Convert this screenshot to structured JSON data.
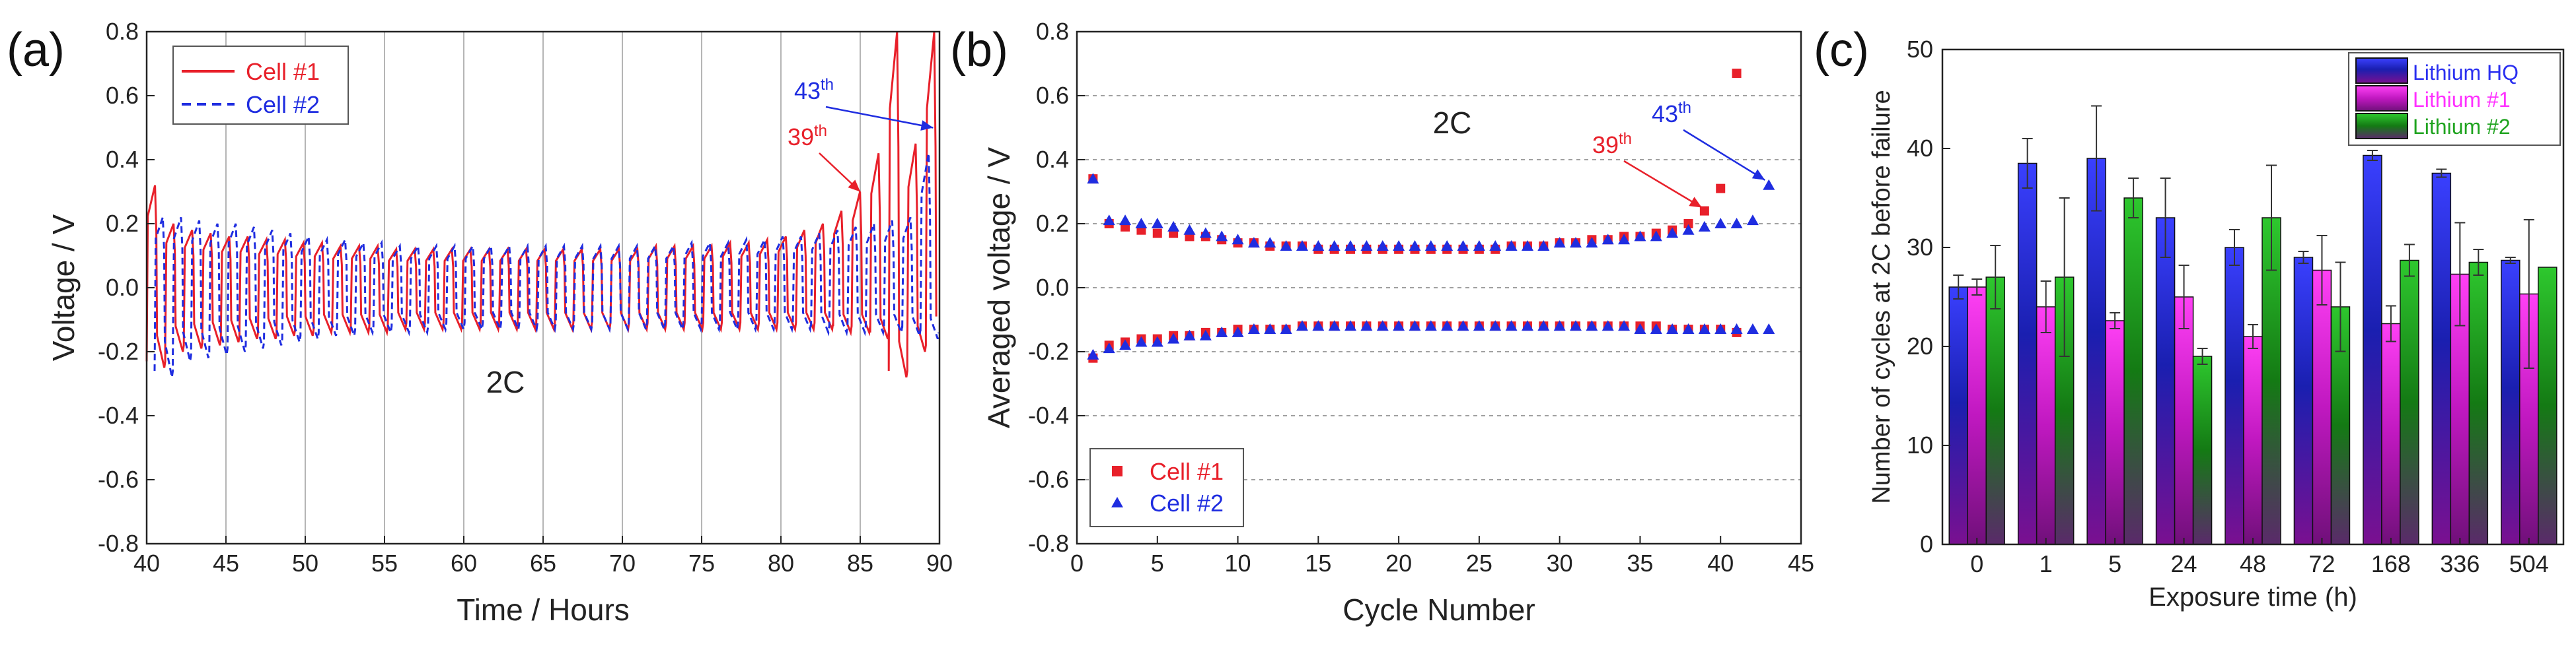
{
  "chart_data": [
    {
      "panel": "(a)",
      "type": "line",
      "title": "",
      "xlabel": "Time / Hours",
      "ylabel": "Voltage / V",
      "xlim": [
        40,
        90
      ],
      "ylim": [
        -0.8,
        0.8
      ],
      "xticks": [
        "40",
        "45",
        "50",
        "55",
        "60",
        "65",
        "70",
        "75",
        "80",
        "85",
        "90"
      ],
      "yticks": [
        "-0.8",
        "-0.6",
        "-0.4",
        "-0.2",
        "0.0",
        "0.2",
        "0.4",
        "0.6",
        "0.8"
      ],
      "grid": "vertical",
      "legend_position": "top-left",
      "annotation_center": "2C",
      "annotations": [
        {
          "text": "39",
          "sup": "th",
          "color": "#e8202a",
          "target_x": 85,
          "target_y": 0.3
        },
        {
          "text": "43",
          "sup": "th",
          "color": "#1f2de0",
          "target_x": 89.6,
          "target_y": 0.5
        }
      ],
      "series": [
        {
          "name": "Cell #1",
          "color": "#e8202a",
          "style": "solid",
          "start": 40.0,
          "period": 1.17,
          "cycles": [
            [
              0.32,
              -0.25
            ],
            [
              0.2,
              -0.2
            ],
            [
              0.18,
              -0.19
            ],
            [
              0.17,
              -0.18
            ],
            [
              0.16,
              -0.17
            ],
            [
              0.16,
              -0.16
            ],
            [
              0.15,
              -0.16
            ],
            [
              0.15,
              -0.15
            ],
            [
              0.14,
              -0.15
            ],
            [
              0.14,
              -0.14
            ],
            [
              0.13,
              -0.14
            ],
            [
              0.13,
              -0.14
            ],
            [
              0.13,
              -0.14
            ],
            [
              0.12,
              -0.13
            ],
            [
              0.12,
              -0.13
            ],
            [
              0.12,
              -0.13
            ],
            [
              0.12,
              -0.13
            ],
            [
              0.12,
              -0.13
            ],
            [
              0.12,
              -0.13
            ],
            [
              0.12,
              -0.13
            ],
            [
              0.12,
              -0.13
            ],
            [
              0.12,
              -0.13
            ],
            [
              0.12,
              -0.13
            ],
            [
              0.12,
              -0.13
            ],
            [
              0.12,
              -0.13
            ],
            [
              0.12,
              -0.13
            ],
            [
              0.12,
              -0.13
            ],
            [
              0.13,
              -0.13
            ],
            [
              0.13,
              -0.13
            ],
            [
              0.13,
              -0.13
            ],
            [
              0.13,
              -0.13
            ],
            [
              0.14,
              -0.13
            ],
            [
              0.14,
              -0.13
            ],
            [
              0.15,
              -0.13
            ],
            [
              0.16,
              -0.13
            ],
            [
              0.18,
              -0.13
            ],
            [
              0.2,
              -0.13
            ],
            [
              0.24,
              -0.14
            ],
            [
              0.3,
              -0.14
            ],
            [
              0.42,
              -0.16
            ],
            [
              0.8,
              -0.28
            ],
            [
              0.45,
              -0.2
            ],
            [
              0.8,
              -0.15
            ]
          ]
        },
        {
          "name": "Cell #2",
          "color": "#1f2de0",
          "style": "dashed",
          "start": 40.5,
          "period": 1.15,
          "cycles": [
            [
              0.22,
              -0.28
            ],
            [
              0.22,
              -0.23
            ],
            [
              0.21,
              -0.22
            ],
            [
              0.2,
              -0.21
            ],
            [
              0.2,
              -0.2
            ],
            [
              0.19,
              -0.19
            ],
            [
              0.18,
              -0.18
            ],
            [
              0.17,
              -0.17
            ],
            [
              0.16,
              -0.16
            ],
            [
              0.15,
              -0.15
            ],
            [
              0.15,
              -0.15
            ],
            [
              0.14,
              -0.14
            ],
            [
              0.14,
              -0.14
            ],
            [
              0.13,
              -0.14
            ],
            [
              0.13,
              -0.14
            ],
            [
              0.13,
              -0.13
            ],
            [
              0.13,
              -0.13
            ],
            [
              0.13,
              -0.13
            ],
            [
              0.13,
              -0.13
            ],
            [
              0.13,
              -0.13
            ],
            [
              0.13,
              -0.13
            ],
            [
              0.13,
              -0.13
            ],
            [
              0.13,
              -0.13
            ],
            [
              0.13,
              -0.13
            ],
            [
              0.13,
              -0.13
            ],
            [
              0.13,
              -0.13
            ],
            [
              0.13,
              -0.13
            ],
            [
              0.13,
              -0.13
            ],
            [
              0.13,
              -0.13
            ],
            [
              0.14,
              -0.13
            ],
            [
              0.14,
              -0.13
            ],
            [
              0.14,
              -0.13
            ],
            [
              0.15,
              -0.13
            ],
            [
              0.15,
              -0.13
            ],
            [
              0.16,
              -0.13
            ],
            [
              0.16,
              -0.13
            ],
            [
              0.17,
              -0.14
            ],
            [
              0.18,
              -0.14
            ],
            [
              0.19,
              -0.14
            ],
            [
              0.2,
              -0.14
            ],
            [
              0.21,
              -0.14
            ],
            [
              0.22,
              -0.15
            ],
            [
              0.42,
              -0.16
            ],
            [
              0.8,
              -0.16
            ]
          ]
        }
      ]
    },
    {
      "panel": "(b)",
      "type": "scatter",
      "title": "",
      "xlabel": "Cycle Number",
      "ylabel": "Averaged voltage / V",
      "xlim": [
        0,
        45
      ],
      "ylim": [
        -0.8,
        0.8
      ],
      "xticks": [
        "0",
        "5",
        "10",
        "15",
        "20",
        "25",
        "30",
        "35",
        "40",
        "45"
      ],
      "yticks": [
        "-0.8",
        "-0.6",
        "-0.4",
        "-0.2",
        "0.0",
        "0.2",
        "0.4",
        "0.6",
        "0.8"
      ],
      "grid": "horizontal",
      "legend_position": "bottom-left",
      "annotation_center": "2C",
      "annotations": [
        {
          "text": "39",
          "sup": "th",
          "color": "#e8202a",
          "target_x": 39,
          "target_y": 0.23
        },
        {
          "text": "43",
          "sup": "th",
          "color": "#1f2de0",
          "target_x": 43,
          "target_y": 0.32
        }
      ],
      "series": [
        {
          "name": "Cell #1",
          "color": "#e8202a",
          "marker": "square",
          "x": [
            1,
            2,
            3,
            4,
            5,
            6,
            7,
            8,
            9,
            10,
            11,
            12,
            13,
            14,
            15,
            16,
            17,
            18,
            19,
            20,
            21,
            22,
            23,
            24,
            25,
            26,
            27,
            28,
            29,
            30,
            31,
            32,
            33,
            34,
            35,
            36,
            37,
            38,
            39,
            40,
            41
          ],
          "charge": [
            0.34,
            0.2,
            0.19,
            0.18,
            0.17,
            0.17,
            0.16,
            0.16,
            0.15,
            0.14,
            0.14,
            0.13,
            0.13,
            0.13,
            0.12,
            0.12,
            0.12,
            0.12,
            0.12,
            0.12,
            0.12,
            0.12,
            0.12,
            0.12,
            0.12,
            0.12,
            0.13,
            0.13,
            0.13,
            0.14,
            0.14,
            0.15,
            0.15,
            0.16,
            0.16,
            0.17,
            0.18,
            0.2,
            0.24,
            0.31,
            0.67
          ],
          "discharge": [
            -0.22,
            -0.18,
            -0.17,
            -0.16,
            -0.16,
            -0.15,
            -0.15,
            -0.14,
            -0.14,
            -0.13,
            -0.13,
            -0.13,
            -0.13,
            -0.12,
            -0.12,
            -0.12,
            -0.12,
            -0.12,
            -0.12,
            -0.12,
            -0.12,
            -0.12,
            -0.12,
            -0.12,
            -0.12,
            -0.12,
            -0.12,
            -0.12,
            -0.12,
            -0.12,
            -0.12,
            -0.12,
            -0.12,
            -0.12,
            -0.12,
            -0.12,
            -0.13,
            -0.13,
            -0.13,
            -0.13,
            -0.14
          ]
        },
        {
          "name": "Cell #2",
          "color": "#1f2de0",
          "marker": "triangle",
          "x": [
            1,
            2,
            3,
            4,
            5,
            6,
            7,
            8,
            9,
            10,
            11,
            12,
            13,
            14,
            15,
            16,
            17,
            18,
            19,
            20,
            21,
            22,
            23,
            24,
            25,
            26,
            27,
            28,
            29,
            30,
            31,
            32,
            33,
            34,
            35,
            36,
            37,
            38,
            39,
            40,
            41,
            42,
            43
          ],
          "charge": [
            0.34,
            0.21,
            0.21,
            0.2,
            0.2,
            0.19,
            0.18,
            0.17,
            0.16,
            0.15,
            0.14,
            0.14,
            0.13,
            0.13,
            0.13,
            0.13,
            0.13,
            0.13,
            0.13,
            0.13,
            0.13,
            0.13,
            0.13,
            0.13,
            0.13,
            0.13,
            0.13,
            0.13,
            0.13,
            0.14,
            0.14,
            0.14,
            0.15,
            0.15,
            0.16,
            0.16,
            0.17,
            0.18,
            0.19,
            0.2,
            0.2,
            0.21,
            0.32
          ],
          "discharge": [
            -0.21,
            -0.19,
            -0.18,
            -0.17,
            -0.17,
            -0.16,
            -0.15,
            -0.15,
            -0.14,
            -0.14,
            -0.13,
            -0.13,
            -0.13,
            -0.12,
            -0.12,
            -0.12,
            -0.12,
            -0.12,
            -0.12,
            -0.12,
            -0.12,
            -0.12,
            -0.12,
            -0.12,
            -0.12,
            -0.12,
            -0.12,
            -0.12,
            -0.12,
            -0.12,
            -0.12,
            -0.12,
            -0.12,
            -0.12,
            -0.13,
            -0.13,
            -0.13,
            -0.13,
            -0.13,
            -0.13,
            -0.13,
            -0.13,
            -0.13
          ]
        }
      ]
    },
    {
      "panel": "(c)",
      "type": "bar",
      "title": "",
      "xlabel": "Exposure time (h)",
      "ylabel": "Number of cycles at 2C before failure",
      "ylim": [
        0,
        50
      ],
      "yticks": [
        "0",
        "10",
        "20",
        "30",
        "40",
        "50"
      ],
      "categories": [
        "0",
        "1",
        "5",
        "24",
        "48",
        "72",
        "168",
        "336",
        "504"
      ],
      "legend_position": "top-right",
      "series": [
        {
          "name": "Lithium HQ",
          "color": "#2a2ff0",
          "text_color": "#ffffff",
          "values": [
            26,
            38.5,
            39,
            33,
            30,
            29,
            39.3,
            37.5,
            28.7
          ],
          "errors": [
            1.2,
            2.5,
            5.3,
            4,
            1.8,
            0.6,
            0.5,
            0.4,
            0.3
          ]
        },
        {
          "name": "Lithium #1",
          "color": "#ee2ee8",
          "text_color": "#ff30ff",
          "values": [
            26,
            24,
            22.6,
            25,
            21,
            27.7,
            22.3,
            27.3,
            25.3
          ],
          "errors": [
            0.8,
            2.6,
            0.8,
            3.2,
            1.2,
            3.5,
            1.8,
            5.2,
            7.5
          ]
        },
        {
          "name": "Lithium #2",
          "color": "#17a317",
          "text_color": "#7dff7d",
          "values": [
            27,
            27,
            35,
            19,
            33,
            24,
            28.7,
            28.5,
            28
          ],
          "errors": [
            3.2,
            8,
            2,
            0.8,
            5.3,
            4.5,
            1.6,
            1.3,
            0
          ]
        }
      ]
    }
  ]
}
